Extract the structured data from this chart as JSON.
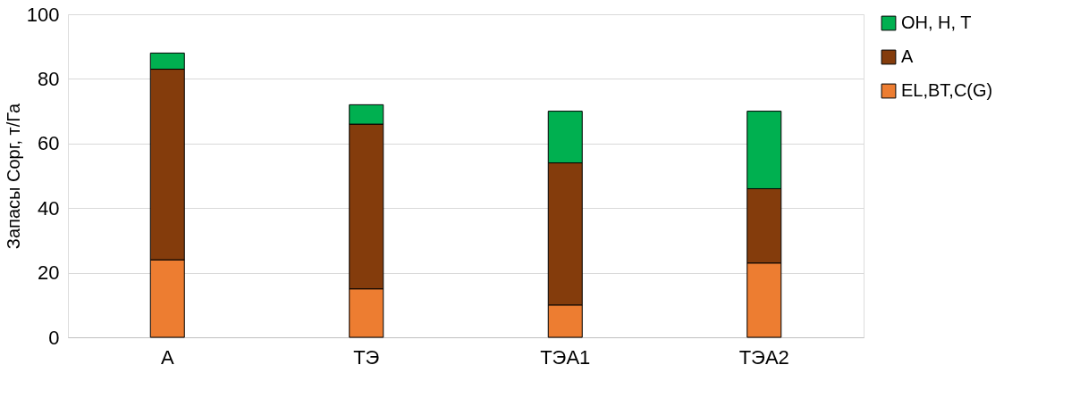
{
  "chart_data": {
    "type": "bar",
    "stacked": true,
    "ylabel": "Запасы Сорг, т/Га",
    "categories": [
      "А",
      "ТЭ",
      "ТЭА1",
      "ТЭА2"
    ],
    "series": [
      {
        "name": "EL,BT,C(G)",
        "color": "#ed7d31",
        "values": [
          24,
          15,
          10,
          23
        ]
      },
      {
        "name": "A",
        "color": "#843c0c",
        "values": [
          59,
          51,
          44,
          23
        ]
      },
      {
        "name": "OH, H, T",
        "color": "#00b050",
        "values": [
          5,
          6,
          16,
          24
        ]
      }
    ],
    "ylim": [
      0,
      100
    ],
    "yticks": [
      0,
      20,
      40,
      60,
      80,
      100
    ],
    "grid": "y",
    "legend": "right"
  }
}
